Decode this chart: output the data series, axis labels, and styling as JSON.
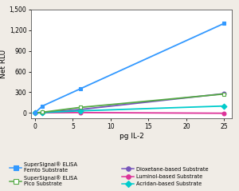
{
  "x": [
    0,
    1,
    6,
    25
  ],
  "series": [
    {
      "name": "SuperSignal® ELISA\nFemto Substrate",
      "y": [
        0,
        100,
        350,
        1300
      ],
      "color": "#3399ff",
      "marker": "s",
      "filled": true,
      "linewidth": 1.3,
      "zorder": 5
    },
    {
      "name": "SuperSignal® ELISA\nPico Substrate",
      "y": [
        0,
        10,
        80,
        275
      ],
      "color": "#55aa44",
      "marker": "s",
      "filled": false,
      "linewidth": 1.3,
      "zorder": 4
    },
    {
      "name": "Dioxetane-based Substrate",
      "y": [
        0,
        5,
        50,
        280
      ],
      "color": "#7755bb",
      "marker": "o",
      "filled": true,
      "linewidth": 1.3,
      "zorder": 3
    },
    {
      "name": "Luminol-based Substrate",
      "y": [
        0,
        2,
        5,
        -5
      ],
      "color": "#dd3399",
      "marker": "o",
      "filled": true,
      "linewidth": 1.3,
      "zorder": 3
    },
    {
      "name": "Acridan-based Substrate",
      "y": [
        0,
        5,
        30,
        100
      ],
      "color": "#00cccc",
      "marker": "D",
      "filled": true,
      "linewidth": 1.3,
      "zorder": 3
    }
  ],
  "xlabel": "pg IL-2",
  "ylabel": "Net RLU",
  "xlim": [
    -0.5,
    26
  ],
  "ylim": [
    -80,
    1500
  ],
  "yticks": [
    0,
    300,
    600,
    900,
    1200,
    1500
  ],
  "ytick_labels": [
    "0",
    "300",
    "600",
    "900",
    "1,200",
    "1,500"
  ],
  "xticks": [
    0,
    5,
    10,
    15,
    20,
    25
  ],
  "xtick_labels": [
    "0",
    "5",
    "10",
    "15",
    "20",
    "25"
  ],
  "background_color": "#f0ece6",
  "plot_bg": "#ffffff"
}
